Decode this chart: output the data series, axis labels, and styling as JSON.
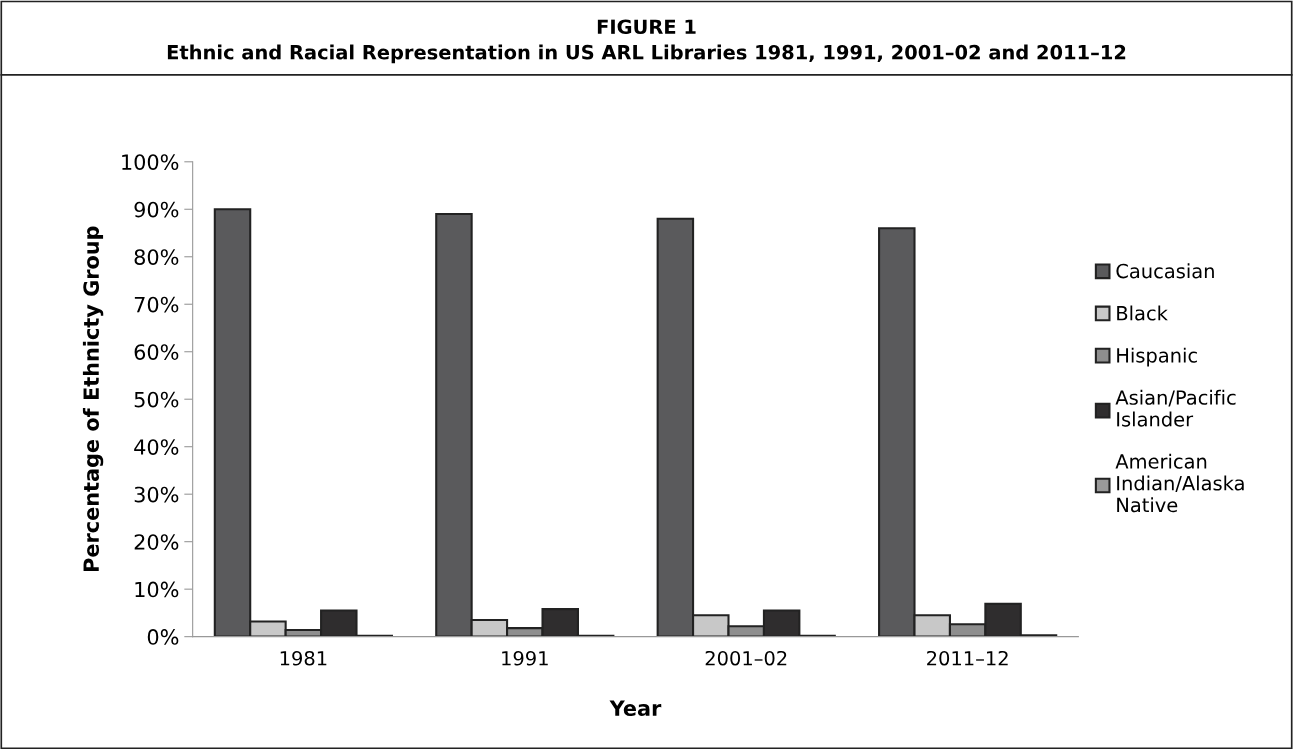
{
  "chart_data": {
    "type": "bar",
    "title": "FIGURE 1",
    "subtitle": "Ethnic and Racial Representation in US ARL Libraries 1981, 1991, 2001–02 and 2011–12",
    "xlabel": "Year",
    "ylabel": "Percentage of Ethnicty Group",
    "categories": [
      "1981",
      "1991",
      "2001–02",
      "2011–12"
    ],
    "series": [
      {
        "name": "Caucasian",
        "color": "#5a5a5c",
        "values": [
          90,
          89,
          88,
          86
        ]
      },
      {
        "name": "Black",
        "color": "#c8c8c8",
        "values": [
          3.2,
          3.5,
          4.5,
          4.5
        ]
      },
      {
        "name": "Hispanic",
        "color": "#8e8e8e",
        "values": [
          1.4,
          1.8,
          2.2,
          2.6
        ]
      },
      {
        "name": "Asian/Pacific\nIslander",
        "color": "#2f2d2e",
        "values": [
          5.5,
          5.8,
          5.5,
          6.9
        ]
      },
      {
        "name": "American\nIndian/Alaska\nNative",
        "color": "#9a9a9a",
        "values": [
          0.2,
          0.2,
          0.2,
          0.3
        ]
      }
    ],
    "ylim": [
      0,
      100
    ],
    "yticks": [
      {
        "value": 0,
        "label": "0%"
      },
      {
        "value": 10,
        "label": "10%"
      },
      {
        "value": 20,
        "label": "20%"
      },
      {
        "value": 30,
        "label": "30%"
      },
      {
        "value": 40,
        "label": "40%"
      },
      {
        "value": 50,
        "label": "50%"
      },
      {
        "value": 60,
        "label": "60%"
      },
      {
        "value": 70,
        "label": "70%"
      },
      {
        "value": 80,
        "label": "80%"
      },
      {
        "value": 90,
        "label": "90%"
      },
      {
        "value": 100,
        "label": "100%"
      }
    ],
    "legend": "right"
  }
}
